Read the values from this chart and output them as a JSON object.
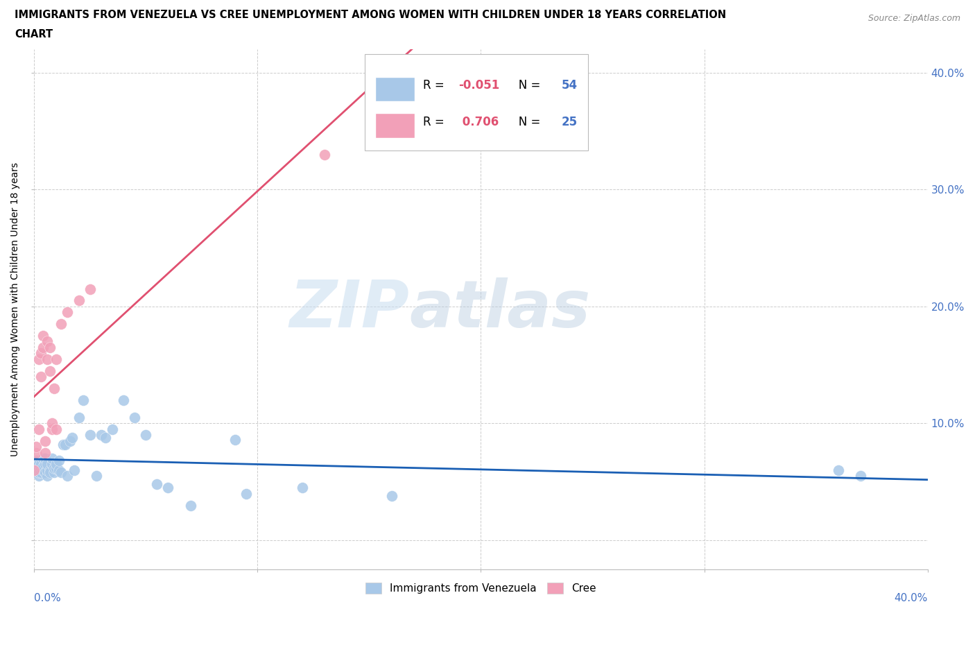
{
  "title_line1": "IMMIGRANTS FROM VENEZUELA VS CREE UNEMPLOYMENT AMONG WOMEN WITH CHILDREN UNDER 18 YEARS CORRELATION",
  "title_line2": "CHART",
  "source": "Source: ZipAtlas.com",
  "ylabel": "Unemployment Among Women with Children Under 18 years",
  "xlim": [
    0.0,
    0.4
  ],
  "ylim": [
    -0.025,
    0.42
  ],
  "xticks": [
    0.0,
    0.1,
    0.2,
    0.3,
    0.4
  ],
  "yticks": [
    0.0,
    0.1,
    0.2,
    0.3,
    0.4
  ],
  "xtick_labels_outer": [
    "0.0%",
    "40.0%"
  ],
  "xtick_outer_pos": [
    0.0,
    0.4
  ],
  "ytick_labels": [
    "10.0%",
    "20.0%",
    "30.0%",
    "40.0%"
  ],
  "ytick_label_pos": [
    0.1,
    0.2,
    0.3,
    0.4
  ],
  "r_venezuela": -0.051,
  "n_venezuela": 54,
  "r_cree": 0.706,
  "n_cree": 25,
  "venezuela_color": "#a8c8e8",
  "cree_color": "#f2a0b8",
  "trend_venezuela_color": "#1a5fb4",
  "trend_cree_color": "#e05070",
  "legend_label_venezuela": "Immigrants from Venezuela",
  "legend_label_cree": "Cree",
  "watermark_zip": "ZIP",
  "watermark_atlas": "atlas",
  "venezuela_scatter_x": [
    0.0,
    0.001,
    0.001,
    0.002,
    0.002,
    0.002,
    0.003,
    0.003,
    0.003,
    0.004,
    0.004,
    0.004,
    0.005,
    0.005,
    0.005,
    0.006,
    0.006,
    0.006,
    0.007,
    0.007,
    0.008,
    0.008,
    0.009,
    0.009,
    0.01,
    0.01,
    0.011,
    0.011,
    0.012,
    0.013,
    0.014,
    0.015,
    0.016,
    0.017,
    0.018,
    0.02,
    0.022,
    0.025,
    0.028,
    0.03,
    0.032,
    0.035,
    0.04,
    0.045,
    0.05,
    0.055,
    0.06,
    0.07,
    0.09,
    0.095,
    0.12,
    0.16,
    0.36,
    0.37
  ],
  "venezuela_scatter_y": [
    0.06,
    0.063,
    0.068,
    0.055,
    0.065,
    0.058,
    0.062,
    0.058,
    0.065,
    0.06,
    0.063,
    0.07,
    0.058,
    0.065,
    0.07,
    0.055,
    0.06,
    0.065,
    0.06,
    0.058,
    0.065,
    0.07,
    0.058,
    0.062,
    0.062,
    0.065,
    0.06,
    0.068,
    0.058,
    0.082,
    0.082,
    0.055,
    0.085,
    0.088,
    0.06,
    0.105,
    0.12,
    0.09,
    0.055,
    0.09,
    0.088,
    0.095,
    0.12,
    0.105,
    0.09,
    0.048,
    0.045,
    0.03,
    0.086,
    0.04,
    0.045,
    0.038,
    0.06,
    0.055
  ],
  "cree_scatter_x": [
    0.0,
    0.001,
    0.001,
    0.002,
    0.002,
    0.003,
    0.003,
    0.004,
    0.004,
    0.005,
    0.005,
    0.006,
    0.006,
    0.007,
    0.007,
    0.008,
    0.008,
    0.009,
    0.01,
    0.01,
    0.012,
    0.015,
    0.02,
    0.025,
    0.13
  ],
  "cree_scatter_y": [
    0.06,
    0.075,
    0.08,
    0.155,
    0.095,
    0.16,
    0.14,
    0.165,
    0.175,
    0.075,
    0.085,
    0.155,
    0.17,
    0.145,
    0.165,
    0.095,
    0.1,
    0.13,
    0.095,
    0.155,
    0.185,
    0.195,
    0.205,
    0.215,
    0.33
  ]
}
